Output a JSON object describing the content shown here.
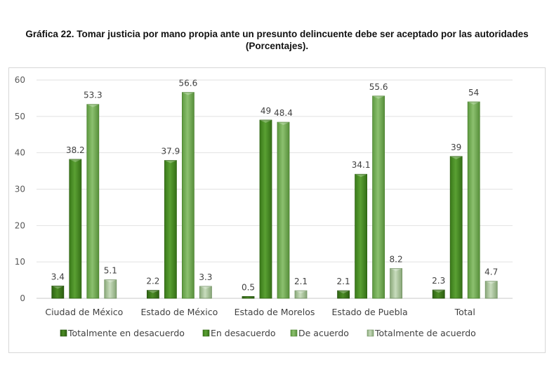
{
  "chart_data": {
    "type": "bar",
    "title_line1": "Gráfica 22. Tomar justicia por mano propia ante un presunto delincuente debe ser aceptado por las autoridades",
    "title_line2": "(Porcentajes).",
    "categories": [
      "Ciudad de México",
      "Estado de México",
      "Estado de Morelos",
      "Estado de Puebla",
      "Total"
    ],
    "series": [
      {
        "name": "Totalmente en desacuerdo",
        "values": [
          3.4,
          2.2,
          0.5,
          2.1,
          2.3
        ],
        "labels": [
          "3.4",
          "2.2",
          "0.5",
          "2.1",
          "2.3"
        ],
        "color": "#3f7d1c"
      },
      {
        "name": "En desacuerdo",
        "values": [
          38.2,
          37.9,
          49,
          34.1,
          39
        ],
        "labels": [
          "38.2",
          "37.9",
          "49",
          "34.1",
          "39"
        ],
        "color": "#4a8f25"
      },
      {
        "name": "De acuerdo",
        "values": [
          53.3,
          56.6,
          48.4,
          55.6,
          54
        ],
        "labels": [
          "53.3",
          "56.6",
          "48.4",
          "55.6",
          "54"
        ],
        "color": "#73a957"
      },
      {
        "name": "Totalmente de acuerdo",
        "values": [
          5.1,
          3.3,
          2.1,
          8.2,
          4.7
        ],
        "labels": [
          "5.1",
          "3.3",
          "2.1",
          "8.2",
          "4.7"
        ],
        "color": "#9cbd8c"
      }
    ],
    "yticks": [
      "0",
      "10",
      "20",
      "30",
      "40",
      "50",
      "60"
    ],
    "ylim": [
      0,
      60
    ],
    "grid": true,
    "legend": "bottom"
  }
}
